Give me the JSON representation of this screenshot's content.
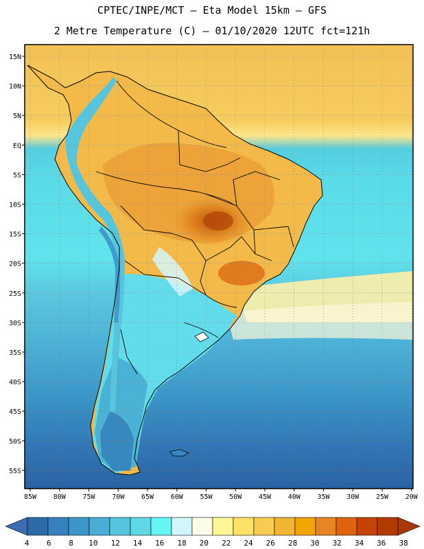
{
  "header": {
    "line1": "CPTEC/INPE/MCT –  Eta Model 15km – GFS",
    "line2": "2 Metre Temperature (C) – 01/10/2020 12UTC fct=121h"
  },
  "map": {
    "lat_ticks": [
      "15N",
      "10N",
      "5N",
      "EQ",
      "5S",
      "10S",
      "15S",
      "20S",
      "25S",
      "30S",
      "35S",
      "40S",
      "45S",
      "50S",
      "55S"
    ],
    "lon_ticks": [
      "85W",
      "80W",
      "75W",
      "70W",
      "65W",
      "60W",
      "55W",
      "50W",
      "45W",
      "40W",
      "35W",
      "30W",
      "25W",
      "20W"
    ],
    "lon_range": [
      -85,
      -20
    ],
    "lat_range": [
      -58,
      16
    ],
    "gridlines": "dotted"
  },
  "colorbar": {
    "labels": [
      "4",
      "6",
      "8",
      "10",
      "12",
      "14",
      "16",
      "18",
      "20",
      "22",
      "24",
      "26",
      "28",
      "30",
      "32",
      "34",
      "36",
      "38"
    ],
    "colors": [
      "#2d6aa8",
      "#3580bd",
      "#3d96c8",
      "#4aadd4",
      "#55c4dc",
      "#5ed8e4",
      "#66f5f5",
      "#d0f6fb",
      "#fffbe6",
      "#fef696",
      "#fce268",
      "#f7cc50",
      "#efb533",
      "#f1a500",
      "#e88522",
      "#df6410",
      "#c64308",
      "#b33b00"
    ],
    "low_arrow_color": "#3b6db0",
    "high_arrow_color": "#a83808"
  }
}
